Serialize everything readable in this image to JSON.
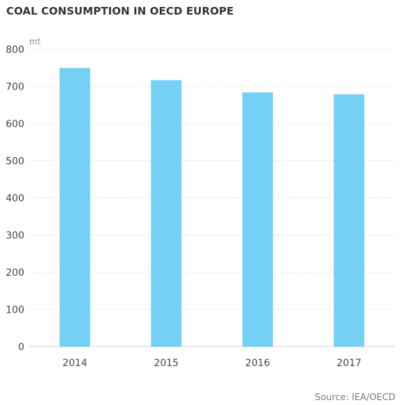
{
  "title": "COAL CONSUMPTION IN OECD EUROPE",
  "source": "Source: IEA/OECD",
  "chart_data": {
    "type": "bar",
    "title": "COAL CONSUMPTION IN OECD EUROPE",
    "ylabel": "mt",
    "categories": [
      "2014",
      "2015",
      "2016",
      "2017"
    ],
    "values": [
      750,
      717,
      684,
      679
    ],
    "ylim": [
      0,
      800
    ],
    "yticks": [
      0,
      100,
      200,
      300,
      400,
      500,
      600,
      700,
      800
    ],
    "grid": true,
    "bar_color": "#74d0f5"
  }
}
